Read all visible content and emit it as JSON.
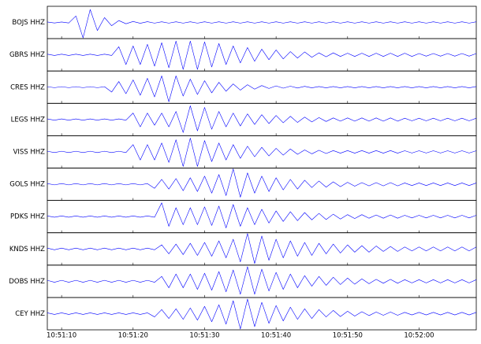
{
  "chart_data": {
    "type": "seismogram",
    "x": [
      "10:51:08",
      "10:51:09",
      "10:51:10",
      "10:51:11",
      "10:51:12",
      "10:51:13",
      "10:51:14",
      "10:51:15",
      "10:51:16",
      "10:51:17",
      "10:51:18",
      "10:51:19",
      "10:51:20",
      "10:51:21",
      "10:51:22",
      "10:51:23",
      "10:51:24",
      "10:51:25",
      "10:51:26",
      "10:51:27",
      "10:51:28",
      "10:51:29",
      "10:51:30",
      "10:51:31",
      "10:51:32",
      "10:51:33",
      "10:51:34",
      "10:51:35",
      "10:51:36",
      "10:51:37",
      "10:51:38",
      "10:51:39",
      "10:51:40",
      "10:51:41",
      "10:51:42",
      "10:51:43",
      "10:51:44",
      "10:51:45",
      "10:51:46",
      "10:51:47",
      "10:51:48",
      "10:51:49",
      "10:51:50",
      "10:51:51",
      "10:51:52",
      "10:51:53",
      "10:51:54",
      "10:51:55",
      "10:51:56",
      "10:51:57",
      "10:51:58",
      "10:51:59",
      "10:52:00",
      "10:52:01",
      "10:52:02",
      "10:52:03",
      "10:52:04",
      "10:52:05",
      "10:52:06",
      "10:52:07",
      "10:52:08"
    ],
    "xlim": [
      "10:51:08",
      "10:52:08"
    ],
    "xticks": [
      "10:51:10",
      "10:51:20",
      "10:51:30",
      "10:51:40",
      "10:51:50",
      "10:52:00"
    ],
    "ylim": [
      -1,
      1
    ],
    "series": [
      {
        "name": "BOJS HHZ",
        "color": "#0000ff",
        "values": [
          0.03,
          -0.03,
          0.03,
          -0.03,
          0.4,
          -0.95,
          0.8,
          -0.5,
          0.3,
          -0.2,
          0.12,
          -0.08,
          0.06,
          -0.05,
          0.05,
          -0.04,
          0.04,
          -0.04,
          0.04,
          -0.04,
          0.04,
          -0.04,
          0.04,
          -0.04,
          0.04,
          -0.04,
          0.04,
          -0.04,
          0.04,
          -0.04,
          0.04,
          -0.04,
          0.04,
          -0.04,
          0.04,
          -0.04,
          0.04,
          -0.04,
          0.04,
          -0.04,
          0.04,
          -0.04,
          0.04,
          -0.04,
          0.04,
          -0.04,
          0.04,
          -0.04,
          0.04,
          -0.04,
          0.04,
          -0.04,
          0.04,
          -0.04,
          0.04,
          -0.04,
          0.04,
          -0.04,
          0.04,
          -0.04,
          0.04
        ]
      },
      {
        "name": "GBRS HHZ",
        "color": "#0000ff",
        "values": [
          0.04,
          -0.04,
          0.04,
          -0.04,
          0.04,
          -0.04,
          0.04,
          -0.04,
          0.04,
          -0.04,
          0.5,
          -0.6,
          0.55,
          -0.6,
          0.65,
          -0.7,
          0.75,
          -0.8,
          0.85,
          -0.9,
          0.85,
          -0.9,
          0.8,
          -0.75,
          0.7,
          -0.6,
          0.55,
          -0.5,
          0.45,
          -0.4,
          0.35,
          -0.3,
          0.3,
          -0.25,
          0.2,
          -0.2,
          0.18,
          -0.15,
          0.12,
          -0.12,
          0.12,
          -0.1,
          0.1,
          -0.1,
          0.1,
          -0.1,
          0.1,
          -0.1,
          0.1,
          -0.1,
          0.1,
          -0.1,
          0.08,
          -0.08,
          0.08,
          -0.08,
          0.08,
          -0.08,
          0.08,
          -0.08,
          0.08
        ]
      },
      {
        "name": "CRES HHZ",
        "color": "#0000ff",
        "values": [
          0.03,
          -0.03,
          0.03,
          -0.03,
          0.03,
          -0.03,
          0.03,
          -0.03,
          0.03,
          -0.3,
          0.35,
          -0.4,
          0.45,
          -0.5,
          0.55,
          -0.6,
          0.7,
          -0.9,
          0.7,
          -0.55,
          0.5,
          -0.45,
          0.4,
          -0.35,
          0.3,
          -0.25,
          0.2,
          -0.18,
          0.15,
          -0.12,
          0.1,
          -0.08,
          0.08,
          -0.06,
          0.06,
          -0.05,
          0.05,
          -0.04,
          0.04,
          -0.04,
          0.04,
          -0.04,
          0.04,
          -0.04,
          0.04,
          -0.04,
          0.04,
          -0.04,
          0.04,
          -0.04,
          0.04,
          -0.04,
          0.04,
          -0.04,
          0.04,
          -0.04,
          0.04,
          -0.04,
          0.04,
          -0.04,
          0.04
        ]
      },
      {
        "name": "LEGS HHZ",
        "color": "#0000ff",
        "values": [
          0.04,
          -0.04,
          0.04,
          -0.04,
          0.04,
          -0.04,
          0.04,
          -0.04,
          0.04,
          -0.04,
          0.04,
          -0.04,
          0.4,
          -0.45,
          0.4,
          -0.35,
          0.4,
          -0.45,
          0.5,
          -0.8,
          0.85,
          -0.7,
          0.75,
          -0.6,
          0.5,
          -0.45,
          0.4,
          -0.4,
          0.35,
          -0.3,
          0.3,
          -0.25,
          0.25,
          -0.2,
          0.2,
          -0.18,
          0.15,
          -0.15,
          0.12,
          -0.12,
          0.1,
          -0.1,
          0.1,
          -0.1,
          0.1,
          -0.1,
          0.1,
          -0.1,
          0.1,
          -0.1,
          0.08,
          -0.08,
          0.08,
          -0.08,
          0.08,
          -0.08,
          0.08,
          -0.08,
          0.08,
          -0.08,
          0.08
        ]
      },
      {
        "name": "VISS HHZ",
        "color": "#0000ff",
        "values": [
          0.04,
          -0.04,
          0.04,
          -0.04,
          0.04,
          -0.04,
          0.04,
          -0.04,
          0.04,
          -0.04,
          0.04,
          -0.04,
          0.45,
          -0.5,
          0.45,
          -0.5,
          0.55,
          -0.65,
          0.75,
          -0.9,
          0.85,
          -0.9,
          0.7,
          -0.6,
          0.55,
          -0.5,
          0.45,
          -0.4,
          0.35,
          -0.3,
          0.28,
          -0.25,
          0.22,
          -0.2,
          0.18,
          -0.15,
          0.12,
          -0.12,
          0.1,
          -0.1,
          0.08,
          -0.08,
          0.08,
          -0.08,
          0.08,
          -0.08,
          0.08,
          -0.08,
          0.08,
          -0.08,
          0.07,
          -0.07,
          0.07,
          -0.07,
          0.07,
          -0.07,
          0.07,
          -0.07,
          0.07,
          -0.07,
          0.07
        ]
      },
      {
        "name": "GOLS HHZ",
        "color": "#0000ff",
        "values": [
          0.04,
          -0.04,
          0.04,
          -0.04,
          0.04,
          -0.04,
          0.04,
          -0.04,
          0.04,
          -0.04,
          0.04,
          -0.04,
          0.04,
          -0.04,
          0.04,
          -0.25,
          0.3,
          -0.3,
          0.35,
          -0.4,
          0.4,
          -0.45,
          0.5,
          -0.55,
          0.6,
          -0.7,
          0.95,
          -0.8,
          0.7,
          -0.55,
          0.5,
          -0.45,
          0.4,
          -0.35,
          0.3,
          -0.3,
          0.25,
          -0.2,
          0.2,
          -0.18,
          0.15,
          -0.15,
          0.12,
          -0.12,
          0.1,
          -0.1,
          0.1,
          -0.1,
          0.1,
          -0.1,
          0.08,
          -0.08,
          0.08,
          -0.08,
          0.08,
          -0.08,
          0.08,
          -0.08,
          0.08,
          -0.08,
          0.08
        ]
      },
      {
        "name": "PDKS HHZ",
        "color": "#0000ff",
        "values": [
          0.04,
          -0.04,
          0.04,
          -0.04,
          0.04,
          -0.04,
          0.04,
          -0.04,
          0.04,
          -0.04,
          0.04,
          -0.04,
          0.04,
          -0.04,
          0.04,
          -0.04,
          0.85,
          -0.6,
          0.55,
          -0.5,
          0.55,
          -0.5,
          0.6,
          -0.55,
          0.65,
          -0.7,
          0.75,
          -0.6,
          0.55,
          -0.5,
          0.45,
          -0.4,
          0.35,
          -0.3,
          0.3,
          -0.25,
          0.25,
          -0.2,
          0.2,
          -0.18,
          0.15,
          -0.15,
          0.12,
          -0.12,
          0.12,
          -0.1,
          0.1,
          -0.1,
          0.1,
          -0.1,
          0.08,
          -0.08,
          0.08,
          -0.08,
          0.08,
          -0.08,
          0.08,
          -0.08,
          0.08,
          -0.08,
          0.08
        ]
      },
      {
        "name": "KNDS HHZ",
        "color": "#0000ff",
        "values": [
          0.05,
          -0.05,
          0.05,
          -0.05,
          0.05,
          -0.05,
          0.05,
          -0.05,
          0.05,
          -0.05,
          0.05,
          -0.05,
          0.05,
          -0.05,
          0.05,
          -0.05,
          0.25,
          -0.3,
          0.3,
          -0.35,
          0.35,
          -0.4,
          0.4,
          -0.45,
          0.5,
          -0.55,
          0.6,
          -0.8,
          0.95,
          -0.9,
          0.8,
          -0.7,
          0.6,
          -0.55,
          0.5,
          -0.45,
          0.4,
          -0.4,
          0.35,
          -0.3,
          0.3,
          -0.25,
          0.25,
          -0.2,
          0.2,
          -0.2,
          0.18,
          -0.15,
          0.15,
          -0.15,
          0.12,
          -0.12,
          0.12,
          -0.12,
          0.12,
          -0.12,
          0.12,
          -0.12,
          0.12,
          -0.12,
          0.12
        ]
      },
      {
        "name": "DOBS HHZ",
        "color": "#0000ff",
        "values": [
          0.06,
          -0.06,
          0.06,
          -0.06,
          0.06,
          -0.06,
          0.06,
          -0.06,
          0.06,
          -0.06,
          0.06,
          -0.06,
          0.06,
          -0.06,
          0.06,
          -0.06,
          0.3,
          -0.4,
          0.45,
          -0.4,
          0.45,
          -0.5,
          0.5,
          -0.55,
          0.6,
          -0.65,
          0.7,
          -0.8,
          0.9,
          -0.8,
          0.75,
          -0.6,
          0.55,
          -0.5,
          0.45,
          -0.4,
          0.35,
          -0.3,
          0.3,
          -0.25,
          0.25,
          -0.2,
          0.2,
          -0.18,
          0.15,
          -0.15,
          0.12,
          -0.12,
          0.12,
          -0.12,
          0.1,
          -0.1,
          0.1,
          -0.1,
          0.1,
          -0.1,
          0.1,
          -0.1,
          0.1,
          -0.1,
          0.1
        ]
      },
      {
        "name": "CEY HHZ",
        "color": "#0000ff",
        "values": [
          0.05,
          -0.05,
          0.05,
          -0.05,
          0.05,
          -0.05,
          0.05,
          -0.05,
          0.05,
          -0.05,
          0.05,
          -0.05,
          0.05,
          -0.05,
          0.05,
          -0.2,
          0.25,
          -0.3,
          0.3,
          -0.35,
          0.35,
          -0.4,
          0.45,
          -0.5,
          0.55,
          -0.65,
          0.8,
          -0.95,
          0.9,
          -0.8,
          0.7,
          -0.6,
          0.5,
          -0.45,
          0.4,
          -0.35,
          0.3,
          -0.3,
          0.25,
          -0.2,
          0.2,
          -0.18,
          0.15,
          -0.15,
          0.12,
          -0.12,
          0.1,
          -0.1,
          0.1,
          -0.1,
          0.08,
          -0.08,
          0.08,
          -0.08,
          0.08,
          -0.08,
          0.08,
          -0.08,
          0.08,
          -0.08,
          0.08
        ]
      }
    ]
  }
}
